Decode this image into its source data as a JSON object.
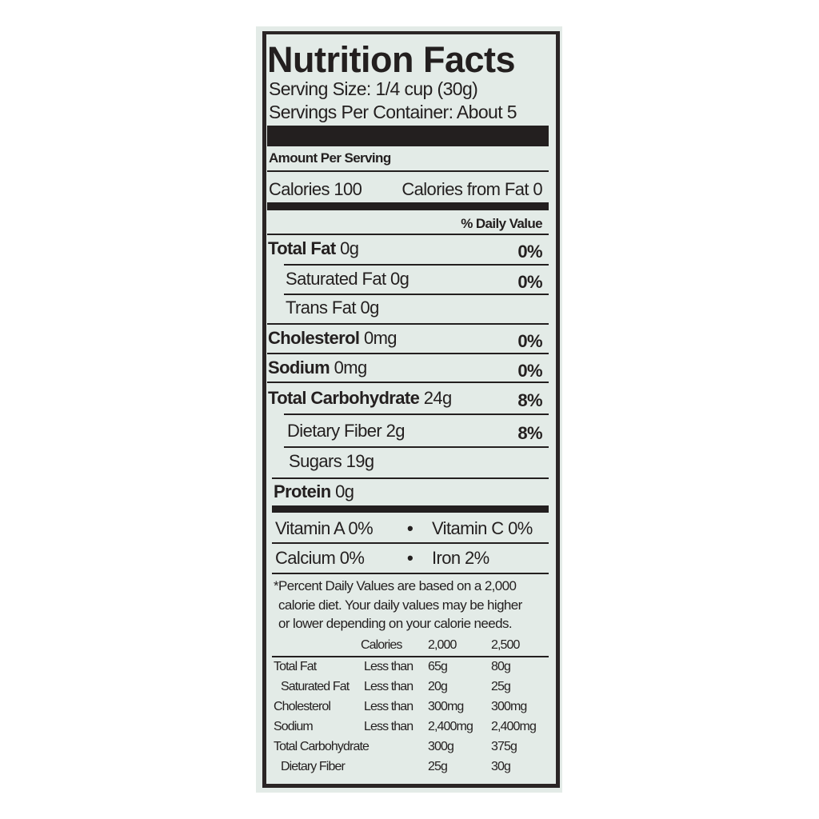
{
  "title": "Nutrition Facts",
  "serving_size": "Serving Size: 1/4 cup (30g)",
  "servings_per_container": "Servings Per Container: About 5",
  "amount_per_serving": "Amount Per Serving",
  "calories": "Calories 100",
  "calories_from_fat": "Calories from Fat 0",
  "daily_value_header": "% Daily Value",
  "nutrients": [
    {
      "name": "Total Fat",
      "amount": "0g",
      "dv": "0%"
    },
    {
      "name": "Saturated Fat",
      "amount": "0g",
      "dv": "0%"
    },
    {
      "name": "Trans Fat",
      "amount": "0g",
      "dv": ""
    },
    {
      "name": "Cholesterol",
      "amount": "0mg",
      "dv": "0%"
    },
    {
      "name": "Sodium",
      "amount": "0mg",
      "dv": "0%"
    },
    {
      "name": "Total Carbohydrate",
      "amount": "24g",
      "dv": "8%"
    },
    {
      "name": "Dietary Fiber",
      "amount": "2g",
      "dv": "8%"
    },
    {
      "name": "Sugars",
      "amount": "19g",
      "dv": ""
    },
    {
      "name": "Protein",
      "amount": "0g",
      "dv": ""
    }
  ],
  "vitamins": [
    [
      "Vitamin A 0%",
      "Vitamin C 0%"
    ],
    [
      "Calcium 0%",
      "Iron 2%"
    ]
  ],
  "bullet": "•",
  "footnote": [
    "*Percent Daily Values are based on a 2,000",
    "calorie diet. Your daily values may be higher",
    "or lower depending on your calorie needs."
  ],
  "dv_table": {
    "header": [
      "Calories",
      "2,000",
      "2,500"
    ],
    "rows": [
      [
        "Total Fat",
        "Less than",
        "65g",
        "80g"
      ],
      [
        "Saturated Fat",
        "Less than",
        "20g",
        "25g"
      ],
      [
        "Cholesterol",
        "Less than",
        "300mg",
        "300mg"
      ],
      [
        "Sodium",
        "Less than",
        "2,400mg",
        "2,400mg"
      ],
      [
        "Total Carbohydrate",
        "",
        "300g",
        "375g"
      ],
      [
        "Dietary Fiber",
        "",
        "25g",
        "30g"
      ]
    ]
  }
}
